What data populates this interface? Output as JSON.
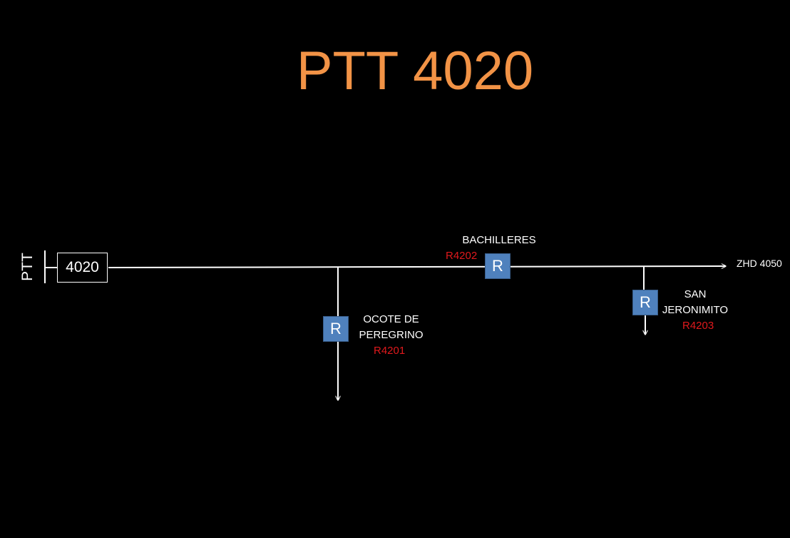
{
  "title": "PTT 4020",
  "source": {
    "label": "PTT",
    "feeder": "4020"
  },
  "end": {
    "label": "ZHD 4050"
  },
  "reclosers": [
    {
      "symbol": "R",
      "name_lines": [
        "OCOTE DE",
        "PEREGRINO"
      ],
      "code": "R4201"
    },
    {
      "symbol": "R",
      "name_lines": [
        "BACHILLERES"
      ],
      "code": "R4202"
    },
    {
      "symbol": "R",
      "name_lines": [
        "SAN",
        "JERONIMITO"
      ],
      "code": "R4203"
    }
  ],
  "colors": {
    "background": "#000000",
    "title": "#f29346",
    "line": "#ffffff",
    "recloser_fill": "#4f81bd",
    "code_text": "#e0191c"
  }
}
